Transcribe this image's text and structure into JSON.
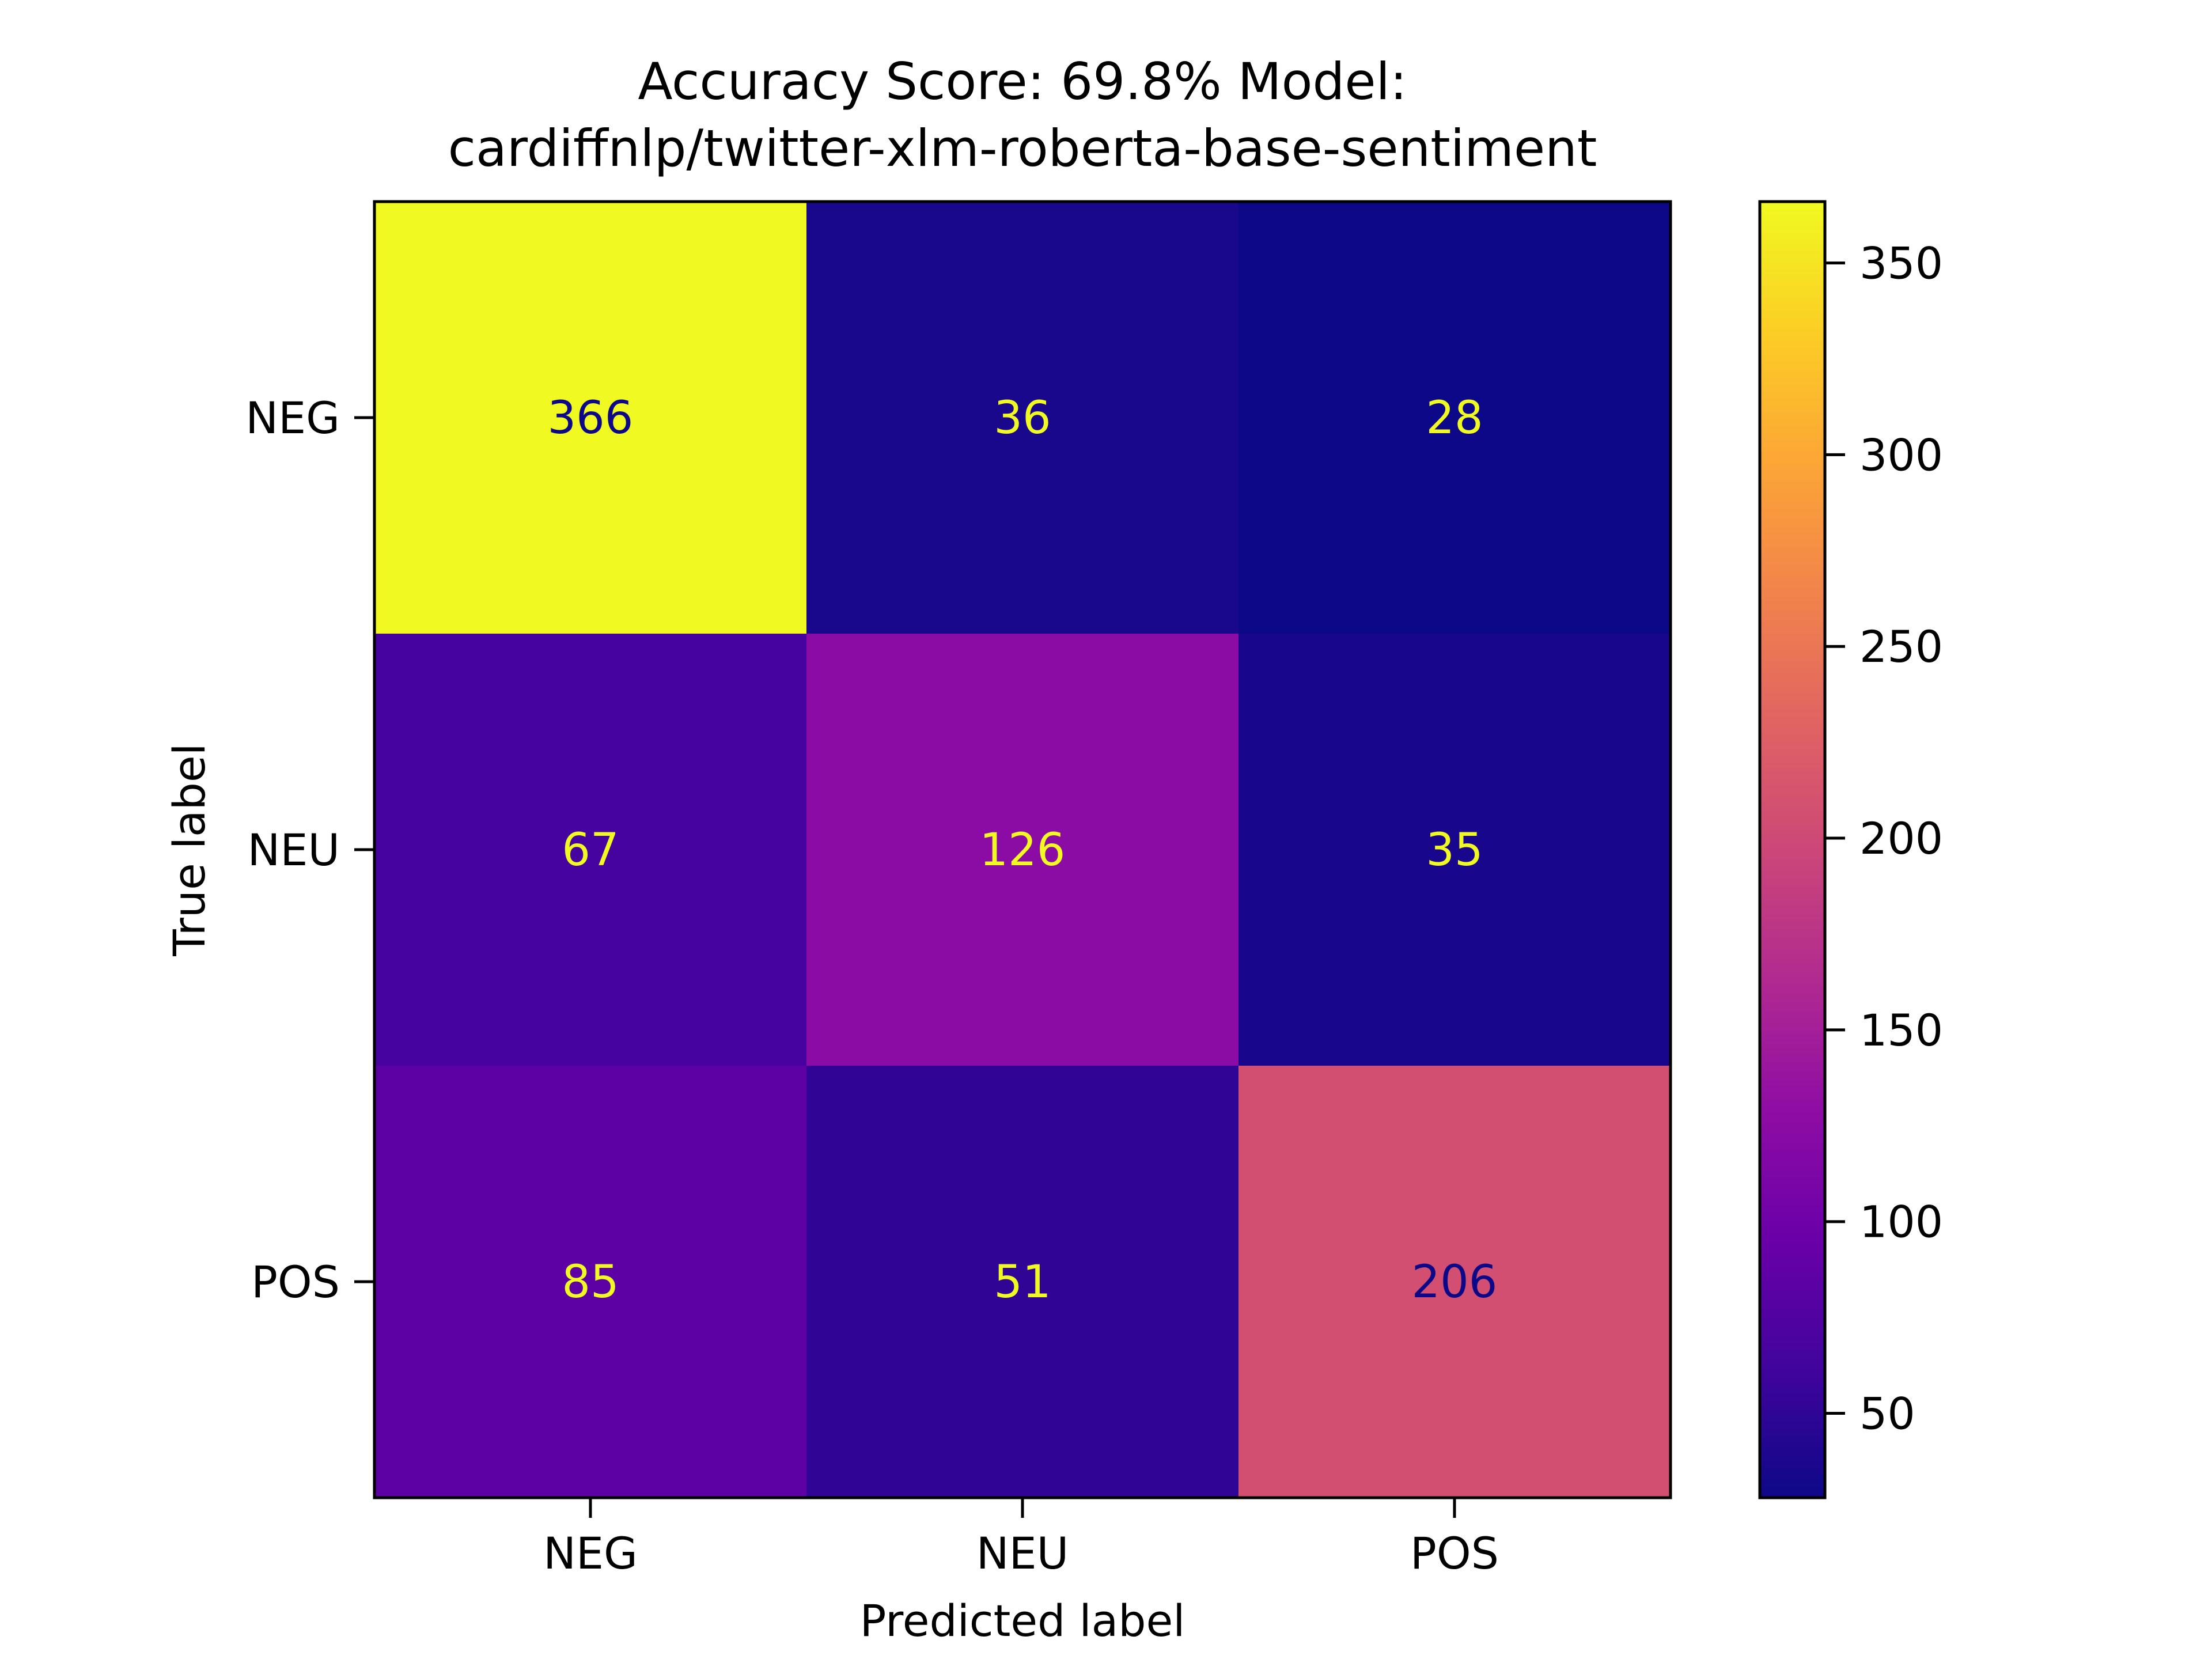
{
  "chart_data": {
    "type": "heatmap",
    "title_lines": [
      "Accuracy Score: 69.8% Model:",
      "cardiffnlp/twitter-xlm-roberta-base-sentiment"
    ],
    "xlabel": "Predicted label",
    "ylabel": "True label",
    "x_categories": [
      "NEG",
      "NEU",
      "POS"
    ],
    "y_categories": [
      "NEG",
      "NEU",
      "POS"
    ],
    "matrix": [
      [
        366,
        36,
        28
      ],
      [
        67,
        126,
        35
      ],
      [
        85,
        51,
        206
      ]
    ],
    "colormap": "plasma",
    "color_range": [
      28,
      366
    ],
    "colorbar_ticks": [
      50,
      100,
      150,
      200,
      250,
      300,
      350
    ],
    "text_colors": {
      "dark": "#0d0887",
      "light": "#f0f921"
    }
  }
}
